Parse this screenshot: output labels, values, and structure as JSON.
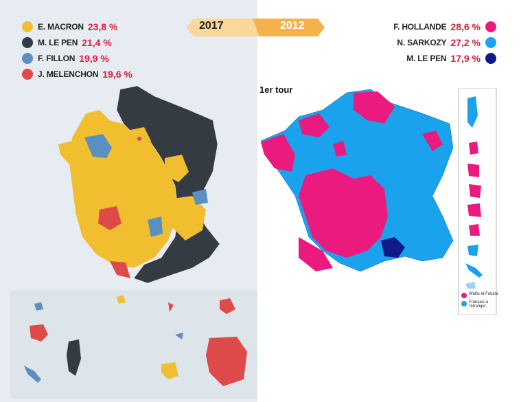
{
  "banner": {
    "year_left": "2017",
    "year_right": "2012"
  },
  "left_legend": [
    {
      "name": "E. MACRON",
      "pct": "23,8 %",
      "color": "#f0be2e"
    },
    {
      "name": "M. LE PEN",
      "pct": "21,4 %",
      "color": "#353b42"
    },
    {
      "name": "F. FILLON",
      "pct": "19,9 %",
      "color": "#5b8ec2"
    },
    {
      "name": "J. MELENCHON",
      "pct": "19,6 %",
      "color": "#de4949"
    }
  ],
  "right_legend": [
    {
      "name": "F. HOLLANDE",
      "pct": "28,6 %",
      "color": "#ea1a7f"
    },
    {
      "name": "N. SARKOZY",
      "pct": "27,2 %",
      "color": "#1aa3ec"
    },
    {
      "name": "M. LE PEN",
      "pct": "17,9 %",
      "color": "#0e1a8a"
    }
  ],
  "tour_label": "1er tour",
  "inset_legend": [
    {
      "label": "Wallis et Futuna",
      "color": "#ea1a7f"
    },
    {
      "label": "Français à l'étranger",
      "color": "#1aa3ec"
    }
  ]
}
